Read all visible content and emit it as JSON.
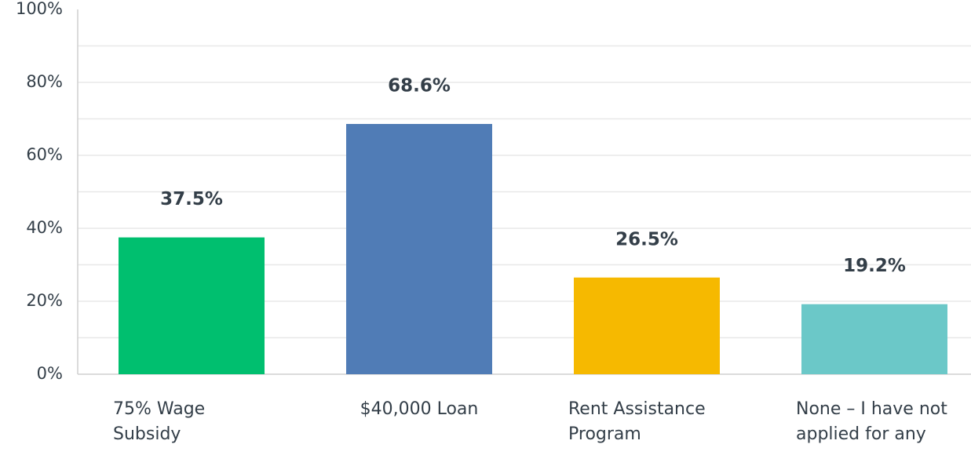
{
  "chart_data": {
    "type": "bar",
    "categories": [
      "75% Wage Subsidy",
      "$40,000 Loan",
      "Rent Assistance Program",
      "None – I have not applied for any"
    ],
    "values": [
      37.5,
      68.6,
      26.5,
      19.2
    ],
    "value_labels": [
      "37.5%",
      "68.6%",
      "26.5%",
      "19.2%"
    ],
    "colors": [
      "#00bf6f",
      "#507cb6",
      "#f6b900",
      "#6bc8c8"
    ],
    "ylim": [
      0,
      100
    ],
    "yticks": [
      {
        "value": 0,
        "label": "0%"
      },
      {
        "value": 20,
        "label": "20%"
      },
      {
        "value": 40,
        "label": "40%"
      },
      {
        "value": 60,
        "label": "60%"
      },
      {
        "value": 80,
        "label": "80%"
      },
      {
        "value": 100,
        "label": "100%"
      }
    ],
    "minor_grid_yticks": [
      10,
      30,
      50,
      70,
      90
    ],
    "grid": true
  }
}
